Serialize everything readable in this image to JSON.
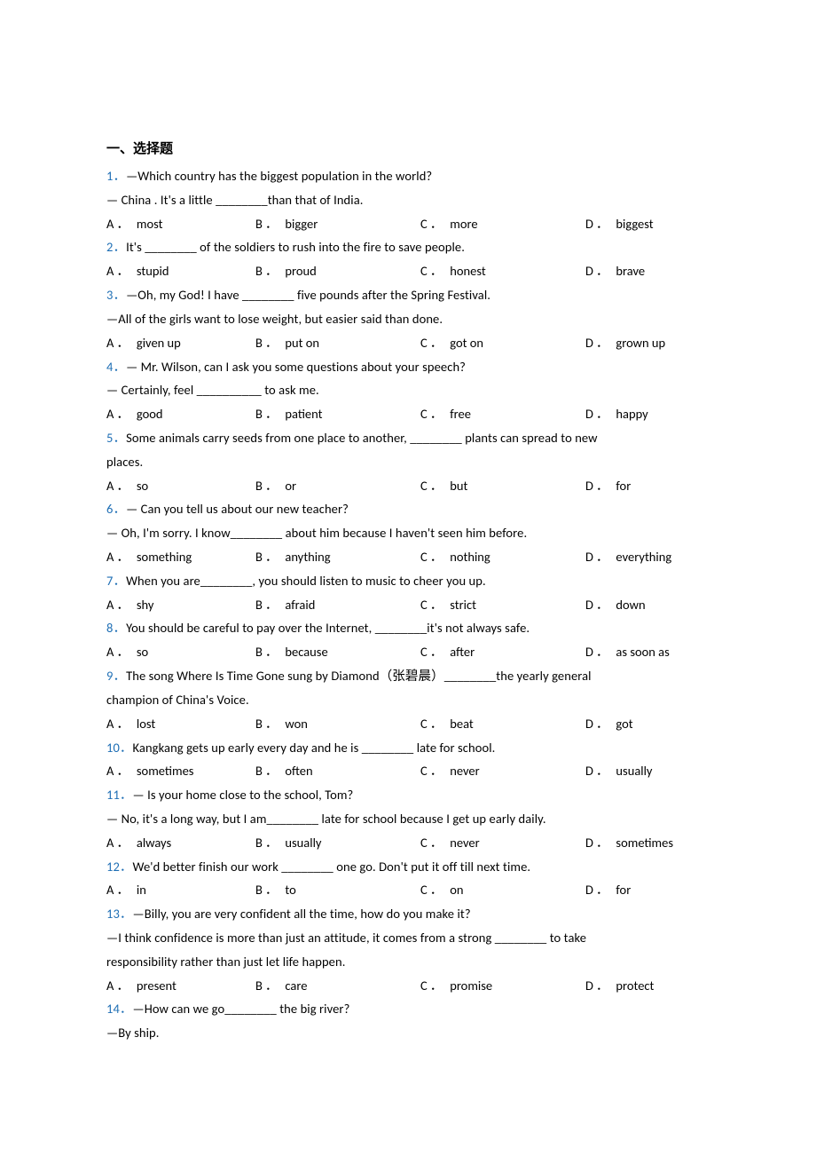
{
  "section_title": "一、选择题",
  "text_color": "#000000",
  "num_color": "#1f6fb5",
  "background_color": "#ffffff",
  "font_size": 14.5,
  "title_font_size": 15,
  "line_height": 1.85,
  "questions": [
    {
      "num": "1．",
      "lines": [
        "—Which country has the biggest population in the world?",
        "— China . It's a little ________than that of India."
      ],
      "opts": {
        "A": "most",
        "B": "bigger",
        "C": "more",
        "D": "biggest"
      }
    },
    {
      "num": "2．",
      "lines": [
        "It's ________ of the soldiers to rush into the fire to save people."
      ],
      "opts": {
        "A": "stupid",
        "B": "proud",
        "C": "honest",
        "D": "brave"
      }
    },
    {
      "num": "3．",
      "lines": [
        "—Oh, my God! I have ________ five pounds after the Spring Festival.",
        "—All of the girls want to lose weight, but easier said than done."
      ],
      "opts": {
        "A": "given up",
        "B": "put on",
        "C": "got on",
        "D": "grown up"
      }
    },
    {
      "num": "4．",
      "lines": [
        "— Mr. Wilson, can I ask you some questions about your speech?",
        "— Certainly, feel __________ to ask me."
      ],
      "opts": {
        "A": "good",
        "B": "patient",
        "C": "free",
        "D": "happy"
      }
    },
    {
      "num": "5．",
      "lines": [
        "Some animals carry seeds from one place to another, ________ plants can spread to new",
        "places."
      ],
      "second_line_full": true,
      "opts": {
        "A": "so",
        "B": "or",
        "C": "but",
        "D": "for"
      }
    },
    {
      "num": "6．",
      "lines": [
        "— Can you tell us about our new teacher?",
        "— Oh, I'm sorry. I know________ about him because I haven't seen him before."
      ],
      "opts": {
        "A": "something",
        "B": "anything",
        "C": "nothing",
        "D": "everything"
      }
    },
    {
      "num": "7．",
      "lines": [
        "When you are________,  you should listen to music to cheer you up."
      ],
      "opts": {
        "A": "shy",
        "B": "afraid",
        "C": "strict",
        "D": "down"
      }
    },
    {
      "num": "8．",
      "lines": [
        "You should be careful to pay over the Internet, ________it's not always safe."
      ],
      "opts": {
        "A": "so",
        "B": "because",
        "C": "after",
        "D": "as soon as"
      }
    },
    {
      "num": "9．",
      "lines": [
        "The song Where Is Time Gone sung by Diamond（张碧晨）________the yearly general",
        "champion of China's Voice."
      ],
      "second_line_full": true,
      "opts": {
        "A": "lost",
        "B": "won",
        "C": "beat",
        "D": "got"
      }
    },
    {
      "num": "10．",
      "lines": [
        "Kangkang gets up early every day and he is ________ late for school."
      ],
      "opts": {
        "A": "sometimes",
        "B": "often",
        "C": "never",
        "D": "usually"
      }
    },
    {
      "num": "11．",
      "lines": [
        "— Is your home close to the school, Tom?",
        "— No, it's a long way, but I am________ late for school because I get up early daily."
      ],
      "opts": {
        "A": "always",
        "B": "usually",
        "C": "never",
        "D": "sometimes"
      }
    },
    {
      "num": "12．",
      "lines": [
        "We'd better finish our work ________ one go. Don't put it off till next time."
      ],
      "opts": {
        "A": "in",
        "B": "to",
        "C": "on",
        "D": "for"
      }
    },
    {
      "num": "13．",
      "lines": [
        "—Billy, you are very confident all the time, how do you make it?",
        "—I think confidence is more than just an attitude, it comes from a strong ________ to take",
        "responsibility rather than just let life happen."
      ],
      "second_line_full": false,
      "opts": {
        "A": "present",
        "B": "care",
        "C": "promise",
        "D": "protect"
      }
    },
    {
      "num": "14．",
      "lines": [
        "—How can we go________ the big river?",
        "—By ship."
      ],
      "opts": null
    }
  ],
  "opt_letters": {
    "A": "A",
    "B": "B",
    "C": "C",
    "D": "D"
  },
  "opt_dot": "．"
}
